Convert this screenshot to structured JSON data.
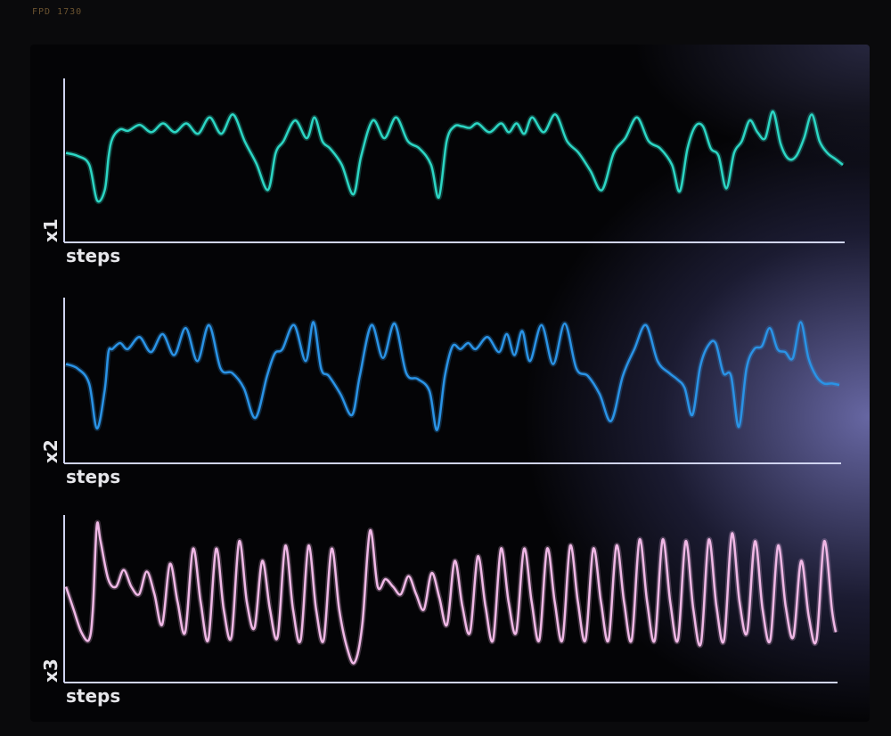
{
  "bezel": {
    "label": "FPD 1730"
  },
  "theme": {
    "background": "#040406",
    "axis_color": "#d0d4f0"
  },
  "chart_data": [
    {
      "type": "line",
      "ylabel": "x1",
      "xlabel": "steps",
      "color": "#2cd6c4",
      "ylim": [
        0,
        1
      ],
      "x": [
        0,
        1.5,
        3,
        4,
        5,
        5.5,
        6,
        7,
        8,
        9.5,
        11,
        12.5,
        14,
        15.5,
        17,
        18.5,
        20,
        21.5,
        23,
        24.5,
        26,
        27,
        28,
        29.5,
        31,
        32,
        33,
        34,
        35.5,
        37,
        38,
        39.5,
        41,
        42.5,
        44,
        45.5,
        47,
        48,
        49,
        50,
        51,
        52,
        53,
        54.5,
        56,
        57,
        58,
        59,
        60,
        61.5,
        63,
        64.5,
        66,
        67.5,
        69,
        70.5,
        72,
        73.5,
        75,
        76.5,
        78,
        79,
        80,
        81,
        82,
        83,
        84,
        85,
        86,
        87,
        88,
        89,
        90,
        91,
        92,
        93,
        94,
        95,
        96,
        97,
        98,
        99,
        100
      ],
      "y": [
        0.52,
        0.5,
        0.44,
        0.2,
        0.27,
        0.5,
        0.62,
        0.68,
        0.67,
        0.71,
        0.66,
        0.72,
        0.66,
        0.72,
        0.65,
        0.76,
        0.65,
        0.78,
        0.6,
        0.45,
        0.27,
        0.52,
        0.6,
        0.74,
        0.62,
        0.76,
        0.6,
        0.55,
        0.44,
        0.24,
        0.5,
        0.74,
        0.62,
        0.76,
        0.6,
        0.55,
        0.44,
        0.22,
        0.6,
        0.7,
        0.7,
        0.69,
        0.72,
        0.66,
        0.72,
        0.66,
        0.72,
        0.65,
        0.76,
        0.66,
        0.78,
        0.6,
        0.52,
        0.4,
        0.27,
        0.52,
        0.62,
        0.76,
        0.6,
        0.55,
        0.44,
        0.26,
        0.55,
        0.7,
        0.7,
        0.55,
        0.5,
        0.28,
        0.52,
        0.6,
        0.74,
        0.66,
        0.62,
        0.8,
        0.58,
        0.48,
        0.5,
        0.62,
        0.78,
        0.6,
        0.52,
        0.48,
        0.44
      ]
    },
    {
      "type": "line",
      "ylabel": "x2",
      "xlabel": "steps",
      "color": "#2a93e6",
      "ylim": [
        0,
        1
      ],
      "x": [
        0,
        1.5,
        3,
        4,
        5,
        5.5,
        6,
        7,
        8,
        9.5,
        11,
        12.5,
        14,
        15.5,
        17,
        18.5,
        20,
        21.5,
        23,
        24.5,
        26,
        27,
        28,
        29.5,
        31,
        32,
        33,
        34,
        35.5,
        37,
        38,
        39.5,
        41,
        42.5,
        44,
        45.5,
        47,
        48,
        49,
        50,
        51,
        52,
        53,
        54.5,
        56,
        57,
        58,
        59,
        60,
        61.5,
        63,
        64.5,
        66,
        67.5,
        69,
        70.5,
        72,
        73.5,
        75,
        76.5,
        78,
        79,
        80,
        81,
        82,
        83,
        84,
        85,
        86,
        87,
        88,
        89,
        90,
        91,
        92,
        93,
        94,
        95,
        96,
        97,
        98,
        99,
        100
      ],
      "y": [
        0.58,
        0.55,
        0.45,
        0.15,
        0.4,
        0.66,
        0.68,
        0.72,
        0.68,
        0.76,
        0.66,
        0.78,
        0.64,
        0.82,
        0.6,
        0.84,
        0.55,
        0.52,
        0.42,
        0.22,
        0.5,
        0.65,
        0.68,
        0.84,
        0.6,
        0.86,
        0.55,
        0.5,
        0.38,
        0.24,
        0.5,
        0.84,
        0.62,
        0.85,
        0.52,
        0.48,
        0.4,
        0.14,
        0.5,
        0.7,
        0.68,
        0.72,
        0.68,
        0.76,
        0.66,
        0.78,
        0.64,
        0.8,
        0.6,
        0.84,
        0.58,
        0.85,
        0.55,
        0.5,
        0.38,
        0.2,
        0.5,
        0.68,
        0.84,
        0.6,
        0.52,
        0.48,
        0.42,
        0.24,
        0.56,
        0.7,
        0.72,
        0.52,
        0.5,
        0.16,
        0.55,
        0.68,
        0.7,
        0.82,
        0.68,
        0.66,
        0.62,
        0.86,
        0.62,
        0.5,
        0.45,
        0.45,
        0.44
      ]
    },
    {
      "type": "line",
      "ylabel": "x3",
      "xlabel": "steps",
      "color": "#f0b8e6",
      "ylim": [
        0,
        1
      ],
      "x": [
        0,
        1,
        2,
        3,
        3.5,
        4,
        4.5,
        5.5,
        6.5,
        7.5,
        8.5,
        9.5,
        10.5,
        11.5,
        12.5,
        13.5,
        14.5,
        15.5,
        16.5,
        17.5,
        18.5,
        19.5,
        20.5,
        21.5,
        22.5,
        23.5,
        24.5,
        25.5,
        26.5,
        27.5,
        28.5,
        29.5,
        30.5,
        31.5,
        32.5,
        33.5,
        34.5,
        35.5,
        36.5,
        37.5,
        38.5,
        39.5,
        40.5,
        41.5,
        42.5,
        43.5,
        44.5,
        45.5,
        46.5,
        47.5,
        48.5,
        49.5,
        50.5,
        51.5,
        52.5,
        53.5,
        54.5,
        55.5,
        56.5,
        57.5,
        58.5,
        59.5,
        60.5,
        61.5,
        62.5,
        63.5,
        64.5,
        65.5,
        66.5,
        67.5,
        68.5,
        69.5,
        70.5,
        71.5,
        72.5,
        73.5,
        74.5,
        75.5,
        76.5,
        77.5,
        78.5,
        79.5,
        80.5,
        81.5,
        82.5,
        83.5,
        84.5,
        85.5,
        86.5,
        87.5,
        88.5,
        89.5,
        90.5,
        91.5,
        92.5,
        93.5,
        94.5,
        95.5,
        96.5,
        97.5,
        98.5,
        99.5,
        100
      ],
      "y": [
        0.55,
        0.4,
        0.25,
        0.2,
        0.4,
        0.95,
        0.85,
        0.6,
        0.55,
        0.66,
        0.55,
        0.5,
        0.65,
        0.5,
        0.3,
        0.7,
        0.45,
        0.25,
        0.8,
        0.45,
        0.2,
        0.8,
        0.4,
        0.22,
        0.85,
        0.45,
        0.28,
        0.72,
        0.4,
        0.22,
        0.82,
        0.4,
        0.2,
        0.82,
        0.4,
        0.2,
        0.8,
        0.4,
        0.15,
        0.05,
        0.3,
        0.92,
        0.55,
        0.6,
        0.55,
        0.5,
        0.62,
        0.5,
        0.4,
        0.64,
        0.48,
        0.3,
        0.72,
        0.42,
        0.25,
        0.75,
        0.42,
        0.2,
        0.8,
        0.45,
        0.25,
        0.8,
        0.45,
        0.2,
        0.8,
        0.45,
        0.2,
        0.82,
        0.45,
        0.2,
        0.8,
        0.45,
        0.2,
        0.82,
        0.45,
        0.2,
        0.86,
        0.45,
        0.2,
        0.86,
        0.45,
        0.2,
        0.85,
        0.4,
        0.18,
        0.86,
        0.42,
        0.2,
        0.9,
        0.45,
        0.25,
        0.85,
        0.4,
        0.2,
        0.82,
        0.42,
        0.22,
        0.72,
        0.35,
        0.2,
        0.85,
        0.4,
        0.25
      ]
    }
  ]
}
